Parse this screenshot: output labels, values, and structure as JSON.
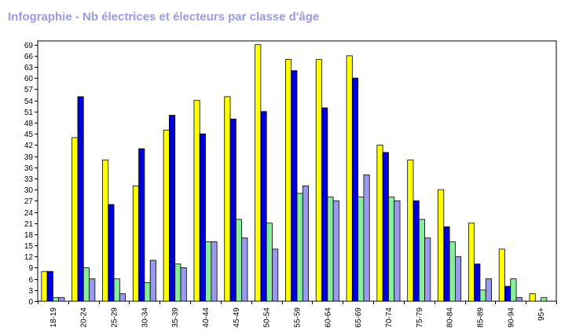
{
  "chart_data": {
    "type": "bar",
    "title": "Infographie - Nb électrices et électeurs par classe d'âge",
    "xlabel": "",
    "ylabel": "",
    "ylim": [
      0,
      70
    ],
    "yticks": [
      0,
      3,
      6,
      9,
      12,
      15,
      18,
      21,
      24,
      27,
      30,
      33,
      36,
      39,
      42,
      45,
      48,
      51,
      54,
      57,
      60,
      63,
      66,
      69
    ],
    "grid": false,
    "legend": "none",
    "categories": [
      "18-19",
      "20-24",
      "25-29",
      "30-34",
      "35-39",
      "40-44",
      "45-49",
      "50-54",
      "55-59",
      "60-64",
      "65-69",
      "70-74",
      "75-79",
      "80-84",
      "85-89",
      "90-94",
      "95+"
    ],
    "series": [
      {
        "color": "#ffff00",
        "values": [
          8,
          44,
          38,
          31,
          46,
          54,
          55,
          69,
          65,
          65,
          66,
          42,
          38,
          30,
          21,
          14,
          2
        ]
      },
      {
        "color": "#0000dd",
        "values": [
          8,
          55,
          26,
          41,
          50,
          45,
          49,
          51,
          62,
          52,
          60,
          40,
          27,
          20,
          10,
          4,
          0
        ]
      },
      {
        "color": "#88ee99",
        "values": [
          1,
          9,
          6,
          5,
          10,
          16,
          22,
          21,
          29,
          28,
          28,
          28,
          22,
          16,
          3,
          6,
          1
        ]
      },
      {
        "color": "#9999ee",
        "values": [
          1,
          6,
          2,
          11,
          9,
          16,
          17,
          14,
          31,
          27,
          34,
          27,
          17,
          12,
          6,
          1,
          0
        ]
      }
    ]
  }
}
